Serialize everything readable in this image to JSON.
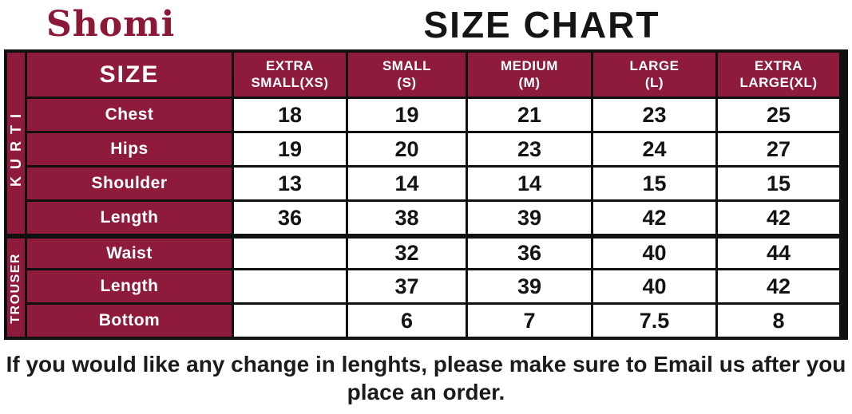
{
  "brand": {
    "name": "Shomi"
  },
  "title": "SIZE CHART",
  "colors": {
    "maroon": "#8e1b3c",
    "logo_maroon": "#8c1838",
    "border_black": "#101010",
    "cell_white": "#ffffff"
  },
  "table": {
    "corner_label": "SIZE",
    "columns": [
      {
        "line1": "EXTRA",
        "line2": "SMALL(XS)"
      },
      {
        "line1": "SMALL",
        "line2": "(S)"
      },
      {
        "line1": "MEDIUM",
        "line2": "(M)"
      },
      {
        "line1": "LARGE",
        "line2": "(L)"
      },
      {
        "line1": "EXTRA",
        "line2": "LARGE(XL)"
      }
    ],
    "sections": [
      {
        "label": "KURTI",
        "rows": [
          {
            "label": "Chest",
            "values": [
              "18",
              "19",
              "21",
              "23",
              "25"
            ]
          },
          {
            "label": "Hips",
            "values": [
              "19",
              "20",
              "23",
              "24",
              "27"
            ]
          },
          {
            "label": "Shoulder",
            "values": [
              "13",
              "14",
              "14",
              "15",
              "15"
            ]
          },
          {
            "label": "Length",
            "values": [
              "36",
              "38",
              "39",
              "42",
              "42"
            ]
          }
        ]
      },
      {
        "label": "TROUSER",
        "rows": [
          {
            "label": "Waist",
            "values": [
              "",
              "32",
              "36",
              "40",
              "44"
            ]
          },
          {
            "label": "Length",
            "values": [
              "",
              "37",
              "39",
              "40",
              "42"
            ]
          },
          {
            "label": "Bottom",
            "values": [
              "",
              "6",
              "7",
              "7.5",
              "8"
            ]
          }
        ]
      }
    ]
  },
  "footer": {
    "note_lines": [
      "If you would like any change in lenghts, please make sure to Email us after you",
      "place an order."
    ]
  }
}
